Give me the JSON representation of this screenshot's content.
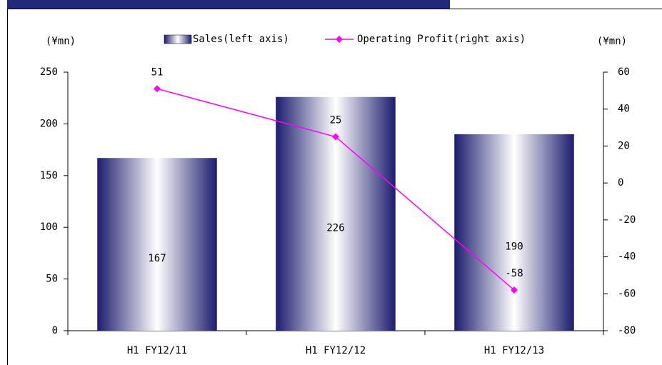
{
  "chart_data": {
    "type": "bar",
    "categories": [
      "H1 FY12/11",
      "H1 FY12/12",
      "H1 FY12/13"
    ],
    "series": [
      {
        "name": "Sales(left axis)",
        "color": "#1c1c6e",
        "values": [
          167,
          226,
          190
        ]
      },
      {
        "name": "Operating Profit(right axis)",
        "type": "line",
        "axis": "y2",
        "color": "#ff00ff",
        "values": [
          51,
          25,
          -58
        ]
      }
    ],
    "y_unit": "(¥mn)",
    "y2_unit": "(¥mn)",
    "ylim": [
      0,
      250
    ],
    "yticks": [
      0,
      50,
      100,
      150,
      200,
      250
    ],
    "y2lim": [
      -80,
      60
    ],
    "y2ticks": [
      -80,
      -60,
      -40,
      -20,
      0,
      20,
      40,
      60
    ],
    "negative_color": "#ff0000",
    "legend": "top"
  }
}
